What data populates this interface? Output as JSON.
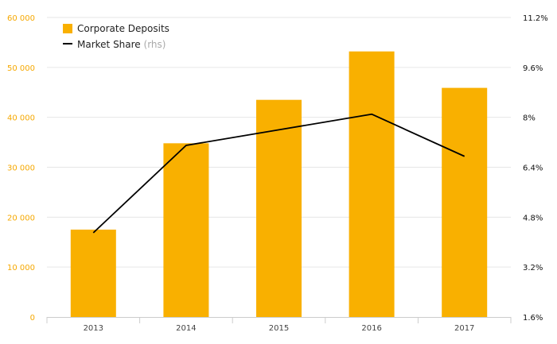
{
  "chart_data": {
    "type": "bar",
    "categories": [
      "2013",
      "2014",
      "2015",
      "2016",
      "2017"
    ],
    "series": [
      {
        "name": "Corporate Deposits",
        "type": "bar",
        "axis": "left",
        "values": [
          17500,
          34800,
          43500,
          53200,
          45900
        ],
        "color": "#f9b000"
      },
      {
        "name": "Market Share",
        "name_suffix": "(rhs)",
        "type": "line",
        "axis": "right",
        "values": [
          4.3,
          7.1,
          7.6,
          8.1,
          6.75
        ],
        "color": "#000000"
      }
    ],
    "ylim": [
      0,
      60000
    ],
    "y_ticks": [
      "0",
      "10 000",
      "20 000",
      "30 000",
      "40 000",
      "50 000",
      "60 000"
    ],
    "y2lim": [
      1.6,
      11.2
    ],
    "y2_ticks": [
      "1.6%",
      "3.2%",
      "4.8%",
      "6.4%",
      "8%",
      "9.6%",
      "11.2%"
    ],
    "grid": true,
    "legend_position": "top-left"
  }
}
